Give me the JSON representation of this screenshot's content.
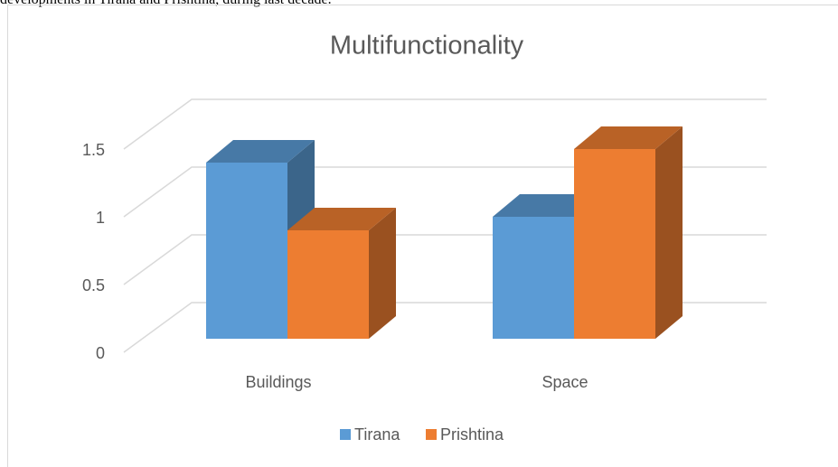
{
  "page_text": "developments in Tirana and Prishtina, during last decade.",
  "chart_data": {
    "type": "bar3d",
    "title": "Multifunctionality",
    "categories": [
      "Buildings",
      "Space"
    ],
    "series": [
      {
        "name": "Tirana",
        "color": "#5b9bd5",
        "values": [
          1.3,
          0.9
        ]
      },
      {
        "name": "Prishtina",
        "color": "#ed7d31",
        "values": [
          0.8,
          1.4
        ]
      }
    ],
    "ylim": [
      0,
      1.5
    ],
    "yticks": [
      0,
      0.5,
      1,
      1.5
    ],
    "grid": true,
    "legend": "bottom"
  }
}
